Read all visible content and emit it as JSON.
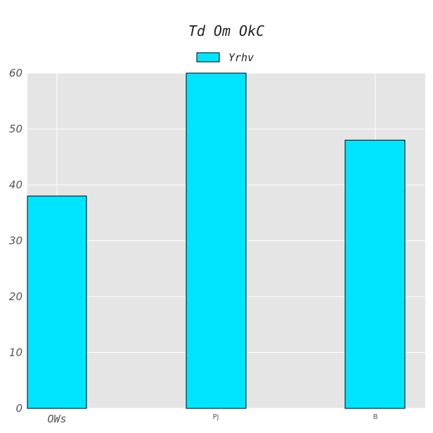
{
  "chart_data": {
    "type": "bar",
    "title": "Td Om OkC",
    "categories": [
      "OWs",
      "Pj",
      "B"
    ],
    "series": [
      {
        "name": "Yrhv",
        "values": [
          38,
          60,
          48
        ],
        "color": "#00e5ff"
      }
    ],
    "ylim": [
      0,
      60
    ],
    "yticks": [
      0,
      10,
      20,
      30,
      40,
      50,
      60
    ],
    "grid": true,
    "legend_position": "top-center",
    "colors": {
      "background": "#e5e5e5",
      "grid": "#ffffff",
      "bar_edge": "#000000"
    }
  }
}
